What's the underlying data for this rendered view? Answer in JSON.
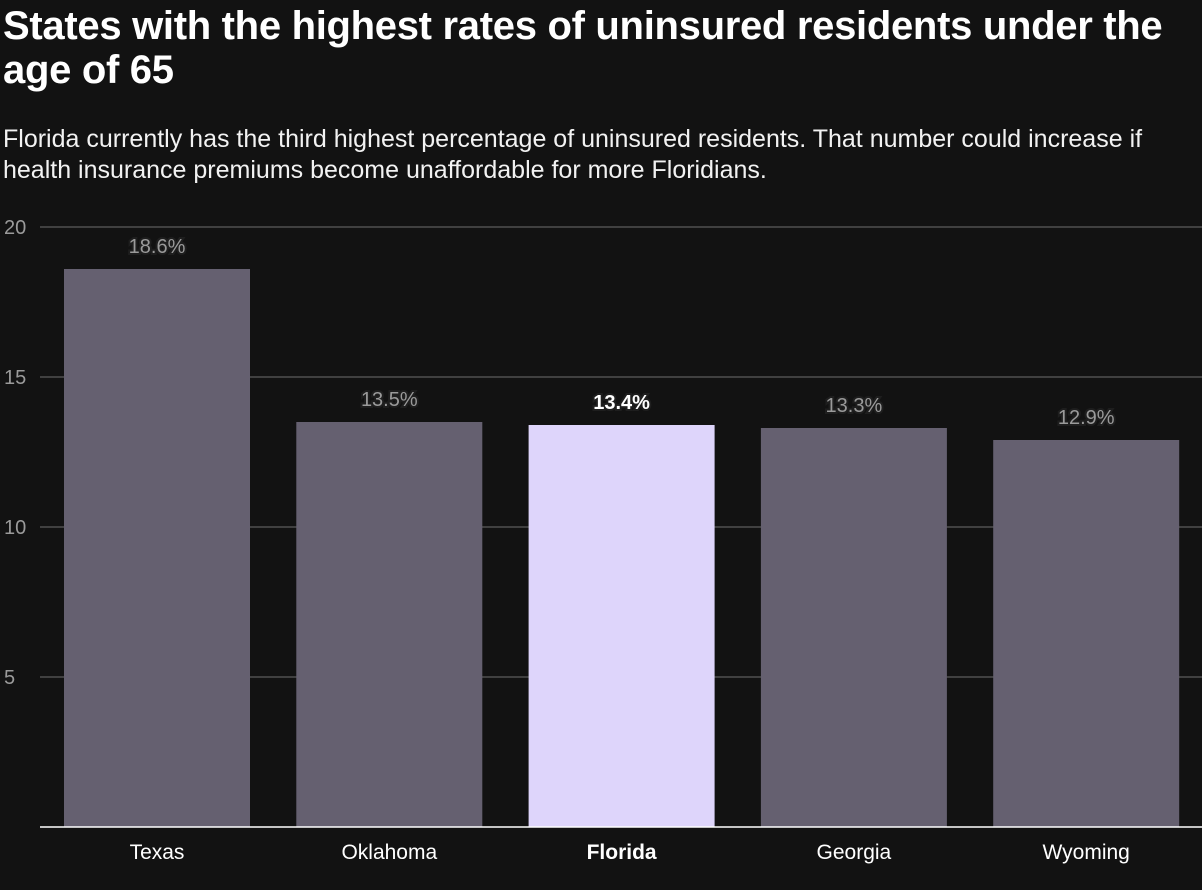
{
  "chart_data": {
    "type": "bar",
    "title": "States with the highest rates of uninsured residents under the age of 65",
    "subtitle": "Florida currently has the third highest percentage of uninsured residents. That number could increase if health insurance premiums become unaffordable for more Floridians.",
    "categories": [
      "Texas",
      "Oklahoma",
      "Florida",
      "Georgia",
      "Wyoming"
    ],
    "values": [
      18.6,
      13.5,
      13.4,
      13.3,
      12.9
    ],
    "data_labels": [
      "18.6%",
      "13.5%",
      "13.4%",
      "13.3%",
      "12.9%"
    ],
    "highlight": "Florida",
    "xlabel": "",
    "ylabel": "",
    "ylim": [
      0,
      20
    ],
    "yticks": [
      5,
      10,
      15,
      20
    ],
    "grid": true,
    "colors": {
      "background": "#121212",
      "bar": "#656070",
      "highlight_bar": "#ded5fb",
      "grid": "#505050",
      "label": "#9a9a9a"
    }
  }
}
